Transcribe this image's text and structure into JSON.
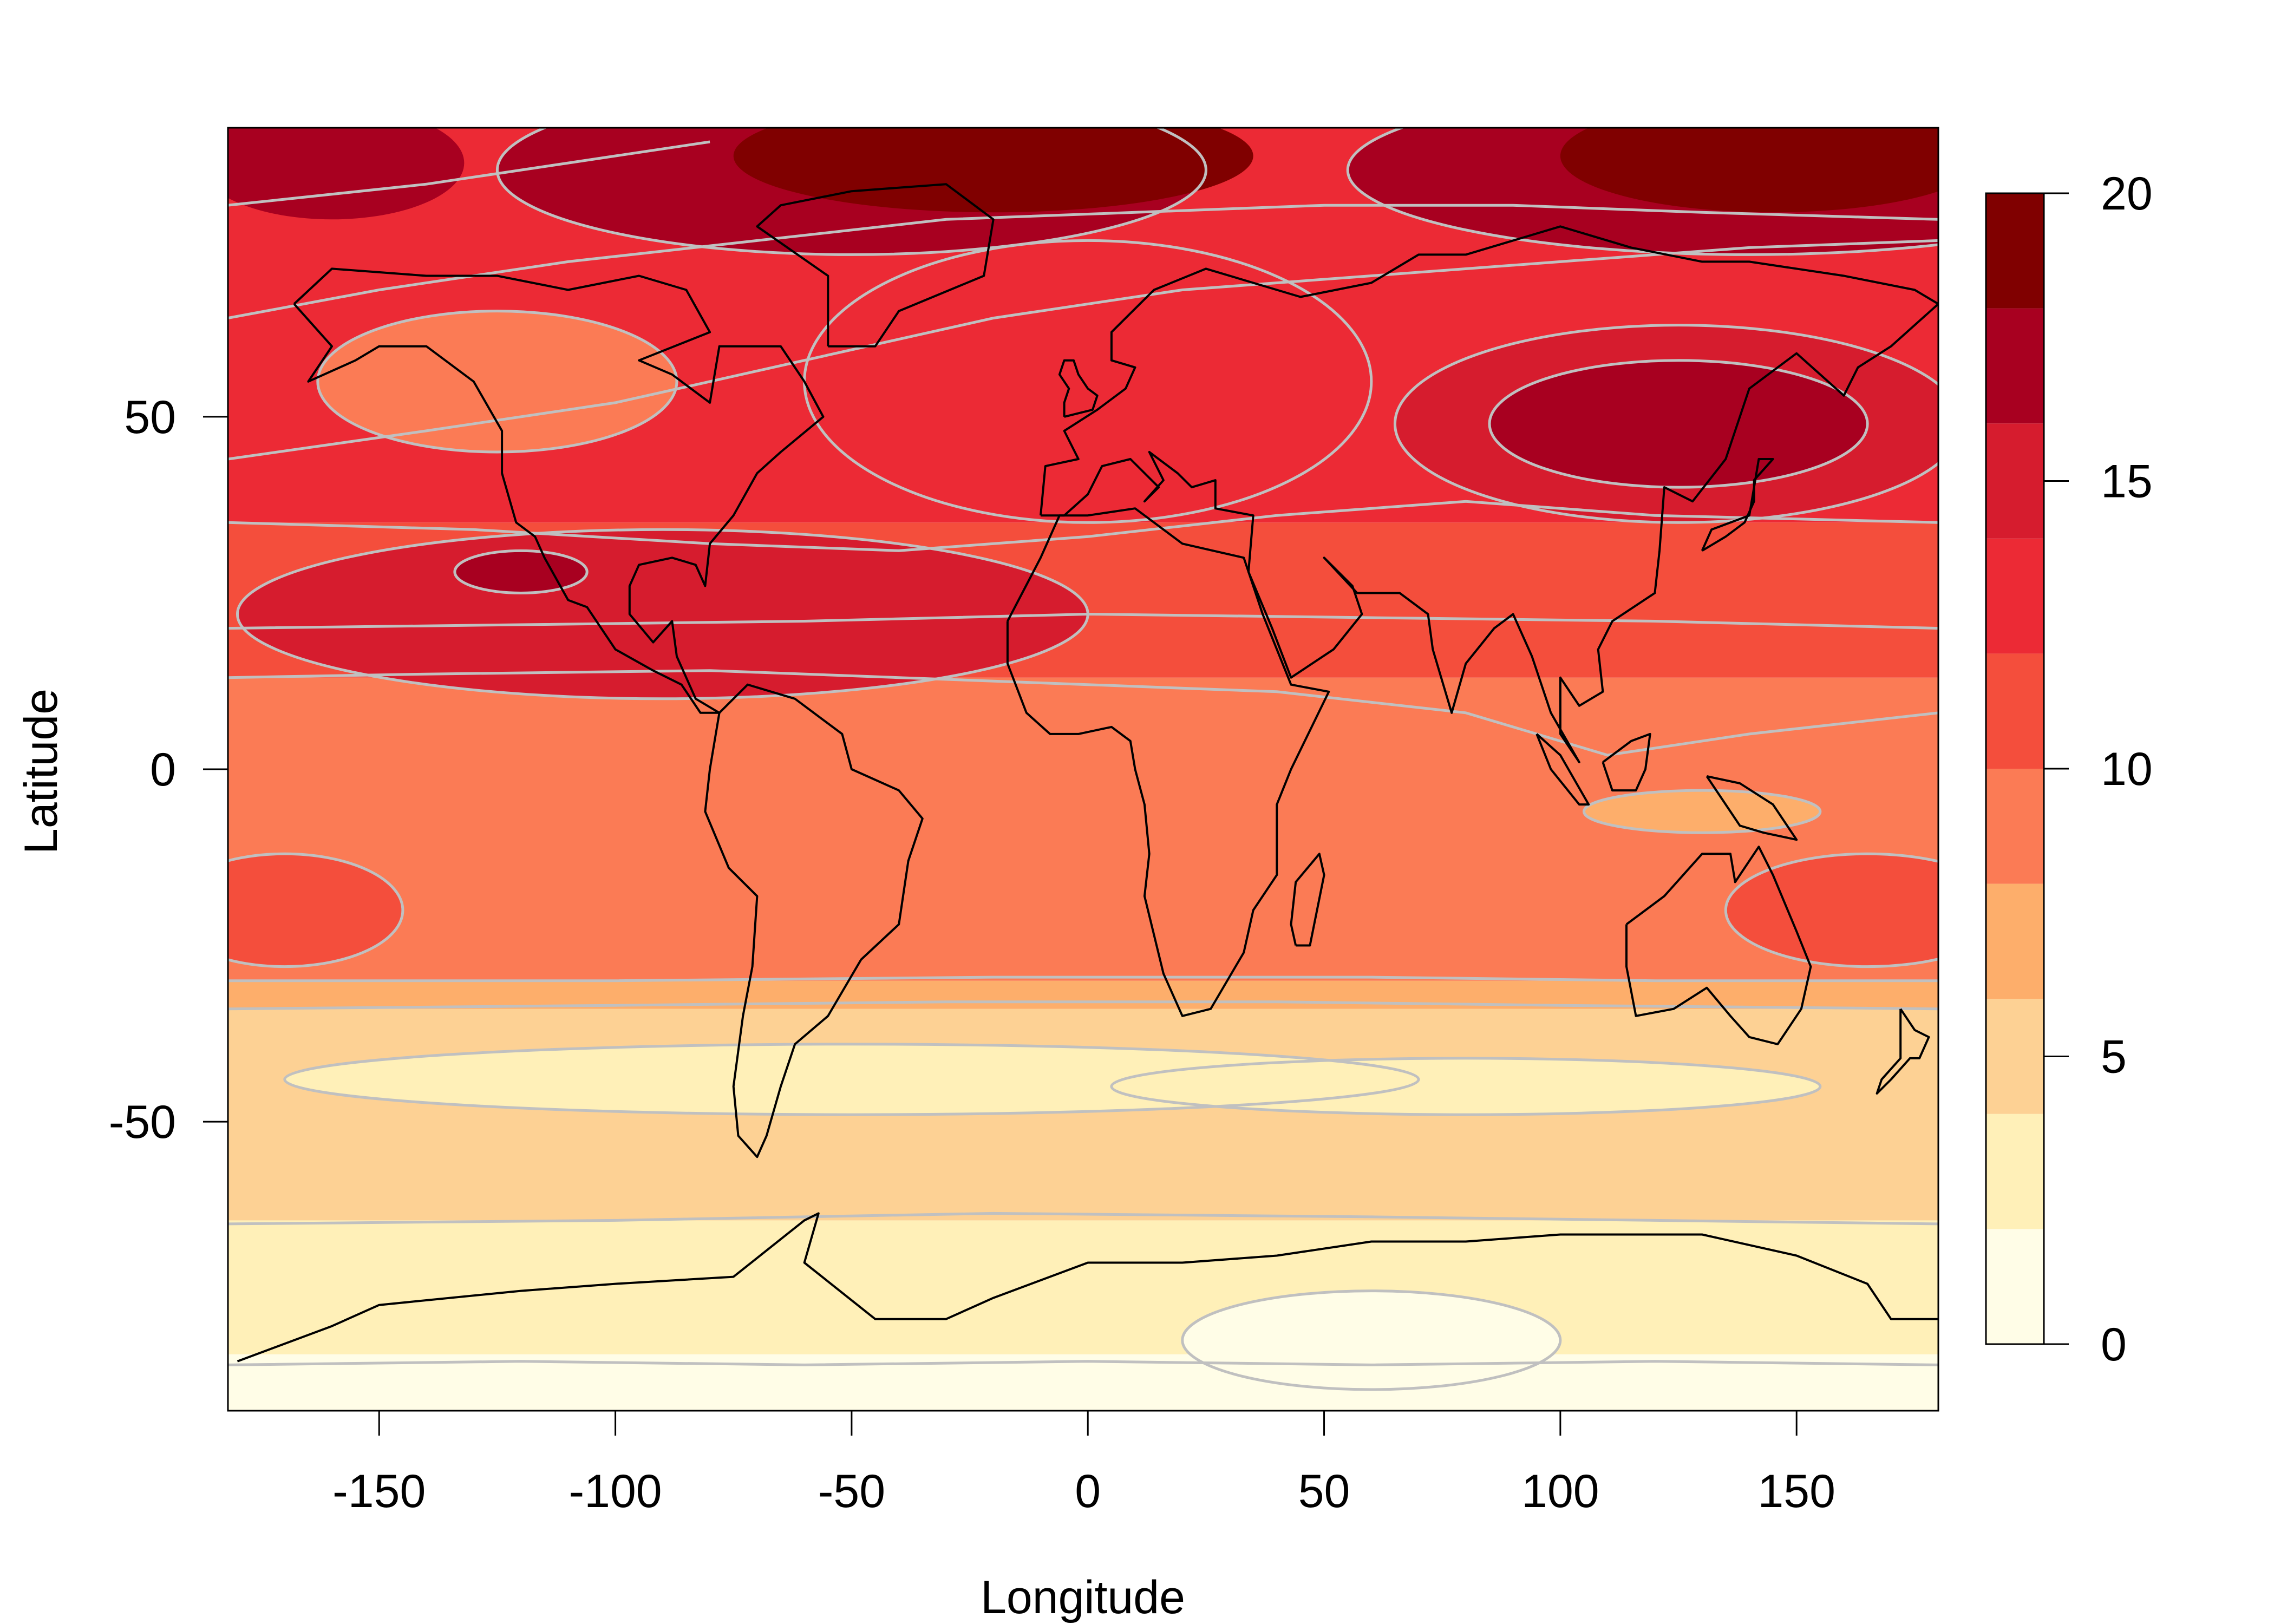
{
  "chart_data": {
    "type": "heatmap",
    "title": "",
    "xlabel": "Longitude",
    "ylabel": "Latitude",
    "xlim": [
      -182,
      180
    ],
    "ylim": [
      -91,
      91
    ],
    "x_ticks": [
      -150,
      -100,
      -50,
      0,
      50,
      100,
      150
    ],
    "x_tick_labels": [
      "-150",
      "-100",
      "-50",
      "0",
      "50",
      "100",
      "150"
    ],
    "y_ticks": [
      -50,
      0,
      50
    ],
    "y_tick_labels": [
      "-50",
      "0",
      "50"
    ],
    "grid": false,
    "legend": {
      "placement": "right",
      "kind": "colorbar",
      "ticks": [
        0,
        5,
        10,
        15,
        20
      ],
      "tick_labels": [
        "0",
        "5",
        "10",
        "15",
        "20"
      ],
      "levels": [
        0,
        2,
        4,
        6,
        8,
        10,
        12,
        14,
        16,
        18,
        20
      ],
      "colors": [
        "#FFFDE7",
        "#FFF0B8",
        "#FDD194",
        "#FDAE6B",
        "#FB7B55",
        "#F44E3C",
        "#EC2A35",
        "#D61C2E",
        "#A80020",
        "#800000"
      ]
    },
    "contour_line_color": "#C0C0C0",
    "coastline_color": "#000000",
    "bands": [
      {
        "lat": [
          -91,
          -83
        ],
        "value": 1
      },
      {
        "lat": [
          -83,
          -64
        ],
        "value": 3
      },
      {
        "lat": [
          -64,
          -34
        ],
        "value": 5
      },
      {
        "lat": [
          -34,
          -30
        ],
        "value": 7
      },
      {
        "lat": [
          -30,
          13
        ],
        "value": 9
      },
      {
        "lat": [
          13,
          35
        ],
        "value": 11
      },
      {
        "lat": [
          35,
          91
        ],
        "value": 13
      }
    ],
    "patches": [
      {
        "lon": -90,
        "lat": 22,
        "rx": 90,
        "ry": 12,
        "value": 15
      },
      {
        "lon": -160,
        "lat": 86,
        "rx": 28,
        "ry": 8,
        "value": 17
      },
      {
        "lon": -50,
        "lat": 85,
        "rx": 75,
        "ry": 12,
        "value": 17
      },
      {
        "lon": -20,
        "lat": 87,
        "rx": 55,
        "ry": 8,
        "value": 19
      },
      {
        "lon": 140,
        "lat": 85,
        "rx": 85,
        "ry": 12,
        "value": 17
      },
      {
        "lon": 145,
        "lat": 87,
        "rx": 45,
        "ry": 8,
        "value": 19
      },
      {
        "lon": 125,
        "lat": 49,
        "rx": 60,
        "ry": 14,
        "value": 15
      },
      {
        "lon": 125,
        "lat": 49,
        "rx": 40,
        "ry": 9,
        "value": 17
      },
      {
        "lon": -120,
        "lat": 28,
        "rx": 14,
        "ry": 3,
        "value": 17
      },
      {
        "lon": -125,
        "lat": 55,
        "rx": 38,
        "ry": 10,
        "value": 9
      },
      {
        "lon": 0,
        "lat": 55,
        "rx": 60,
        "ry": 20,
        "value": 13
      },
      {
        "lon": -170,
        "lat": -20,
        "rx": 25,
        "ry": 8,
        "value": 11
      },
      {
        "lon": 165,
        "lat": -20,
        "rx": 30,
        "ry": 8,
        "value": 11
      },
      {
        "lon": 130,
        "lat": -6,
        "rx": 25,
        "ry": 3,
        "value": 7
      },
      {
        "lon": -50,
        "lat": -44,
        "rx": 120,
        "ry": 5,
        "value": 3
      },
      {
        "lon": 80,
        "lat": -45,
        "rx": 75,
        "ry": 4,
        "value": 3
      },
      {
        "lon": 60,
        "lat": -81,
        "rx": 40,
        "ry": 7,
        "value": 1
      }
    ]
  }
}
